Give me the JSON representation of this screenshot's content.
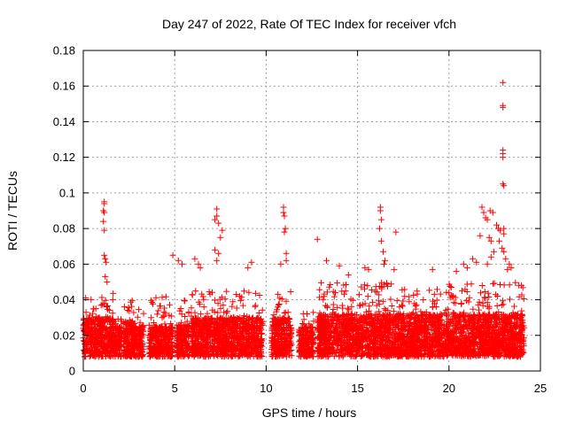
{
  "chart_data": {
    "type": "scatter",
    "title": "Day 247 of 2022, Rate Of TEC Index for receiver vfch",
    "xlabel": "GPS time / hours",
    "ylabel": "ROTI / TECUs",
    "xlim": [
      0,
      25
    ],
    "ylim": [
      0,
      0.18
    ],
    "x_ticks": [
      0,
      5,
      10,
      15,
      20,
      25
    ],
    "y_ticks": [
      "0",
      "0.02",
      "0.04",
      "0.06",
      "0.08",
      "0.1",
      "0.12",
      "0.14",
      "0.16",
      "0.18"
    ],
    "grid": true,
    "marker": "+",
    "color": "#ff0000",
    "series": [
      {
        "name": "ROTI",
        "segments": [
          {
            "x_start": 0.0,
            "x_end": 1.7,
            "base": [
              0.008,
              0.03
            ],
            "upper": 0.045
          },
          {
            "x_start": 1.7,
            "x_end": 2.1,
            "base": [
              0.008,
              0.025
            ],
            "upper": 0.032
          },
          {
            "x_start": 2.2,
            "x_end": 2.7,
            "base": [
              0.008,
              0.028
            ],
            "upper": 0.04
          },
          {
            "x_start": 2.7,
            "x_end": 3.3,
            "base": [
              0.008,
              0.025
            ],
            "upper": 0.038
          },
          {
            "x_start": 3.6,
            "x_end": 4.9,
            "base": [
              0.008,
              0.025
            ],
            "upper": 0.042
          },
          {
            "x_start": 5.1,
            "x_end": 5.8,
            "base": [
              0.008,
              0.026
            ],
            "upper": 0.04
          },
          {
            "x_start": 5.9,
            "x_end": 9.8,
            "base": [
              0.008,
              0.03
            ],
            "upper": 0.045
          },
          {
            "x_start": 10.3,
            "x_end": 11.4,
            "base": [
              0.008,
              0.03
            ],
            "upper": 0.045
          },
          {
            "x_start": 11.8,
            "x_end": 12.6,
            "base": [
              0.008,
              0.025
            ],
            "upper": 0.035
          },
          {
            "x_start": 12.8,
            "x_end": 24.1,
            "base": [
              0.008,
              0.032
            ],
            "upper": 0.05
          }
        ],
        "outliers": [
          [
            1.15,
            0.095
          ],
          [
            1.15,
            0.094
          ],
          [
            1.1,
            0.09
          ],
          [
            1.15,
            0.089
          ],
          [
            1.1,
            0.084
          ],
          [
            1.15,
            0.079
          ],
          [
            1.15,
            0.065
          ],
          [
            1.2,
            0.063
          ],
          [
            1.25,
            0.061
          ],
          [
            1.2,
            0.053
          ],
          [
            1.3,
            0.05
          ],
          [
            4.9,
            0.065
          ],
          [
            5.2,
            0.062
          ],
          [
            5.4,
            0.06
          ],
          [
            6.1,
            0.063
          ],
          [
            6.3,
            0.06
          ],
          [
            6.4,
            0.058
          ],
          [
            7.3,
            0.091
          ],
          [
            7.3,
            0.087
          ],
          [
            7.2,
            0.085
          ],
          [
            7.4,
            0.083
          ],
          [
            7.6,
            0.079
          ],
          [
            7.5,
            0.075
          ],
          [
            7.2,
            0.068
          ],
          [
            7.4,
            0.066
          ],
          [
            7.3,
            0.062
          ],
          [
            9.2,
            0.061
          ],
          [
            9.0,
            0.058
          ],
          [
            10.95,
            0.092
          ],
          [
            10.95,
            0.089
          ],
          [
            11.0,
            0.087
          ],
          [
            11.05,
            0.08
          ],
          [
            11.0,
            0.078
          ],
          [
            11.1,
            0.066
          ],
          [
            11.1,
            0.062
          ],
          [
            10.8,
            0.06
          ],
          [
            12.8,
            0.074
          ],
          [
            13.3,
            0.062
          ],
          [
            14.0,
            0.059
          ],
          [
            14.5,
            0.054
          ],
          [
            15.4,
            0.058
          ],
          [
            15.6,
            0.057
          ],
          [
            16.25,
            0.092
          ],
          [
            16.25,
            0.09
          ],
          [
            16.3,
            0.085
          ],
          [
            16.2,
            0.08
          ],
          [
            16.3,
            0.073
          ],
          [
            16.4,
            0.067
          ],
          [
            16.5,
            0.062
          ],
          [
            16.45,
            0.06
          ],
          [
            17.1,
            0.078
          ],
          [
            17.0,
            0.057
          ],
          [
            19.1,
            0.057
          ],
          [
            20.4,
            0.056
          ],
          [
            20.8,
            0.06
          ],
          [
            21.0,
            0.058
          ],
          [
            21.3,
            0.063
          ],
          [
            21.5,
            0.061
          ],
          [
            21.7,
            0.076
          ],
          [
            21.8,
            0.092
          ],
          [
            21.9,
            0.089
          ],
          [
            22.0,
            0.086
          ],
          [
            22.1,
            0.085
          ],
          [
            22.2,
            0.075
          ],
          [
            22.3,
            0.073
          ],
          [
            22.25,
            0.09
          ],
          [
            22.4,
            0.089
          ],
          [
            22.6,
            0.082
          ],
          [
            22.7,
            0.08
          ],
          [
            22.8,
            0.079
          ],
          [
            22.75,
            0.073
          ],
          [
            22.9,
            0.069
          ],
          [
            22.45,
            0.067
          ],
          [
            22.3,
            0.064
          ],
          [
            22.1,
            0.06
          ],
          [
            22.95,
            0.162
          ],
          [
            22.95,
            0.149
          ],
          [
            22.95,
            0.148
          ],
          [
            22.95,
            0.124
          ],
          [
            22.95,
            0.122
          ],
          [
            22.95,
            0.12
          ],
          [
            22.95,
            0.105
          ],
          [
            23.0,
            0.104
          ],
          [
            23.0,
            0.08
          ],
          [
            23.0,
            0.077
          ],
          [
            23.0,
            0.067
          ],
          [
            23.1,
            0.063
          ],
          [
            23.2,
            0.057
          ],
          [
            23.3,
            0.06
          ],
          [
            23.4,
            0.058
          ]
        ]
      }
    ]
  }
}
